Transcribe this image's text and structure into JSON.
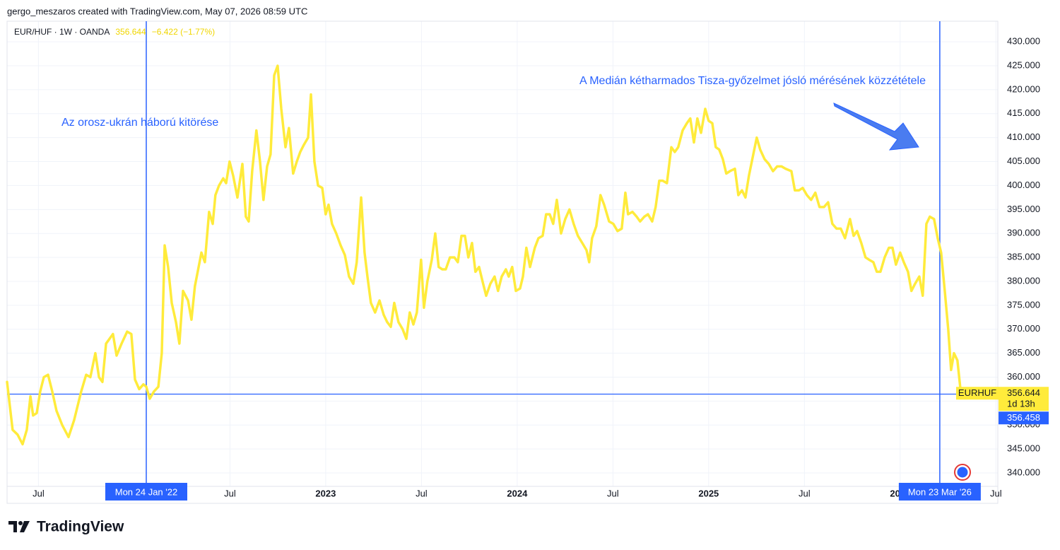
{
  "header": "gergo_meszaros created with TradingView.com, May 07, 2026 08:59 UTC",
  "brand": "TradingView",
  "chart_data": {
    "type": "line",
    "legend_price": "356.644",
    "legend_change": "−6.422 (−1.77%)",
    "annotations": [
      "Az orosz-ukrán háború kitörése",
      "A Medián kétharmados Tisza-győzelmet jósló mérésének közzététele"
    ],
    "x": [
      2021.336,
      2021.365,
      2021.391,
      2021.417,
      2021.439,
      2021.458,
      2021.472,
      2021.491,
      2021.509,
      2021.528,
      2021.55,
      2021.572,
      2021.594,
      2021.624,
      2021.657,
      2021.686,
      2021.723,
      2021.749,
      2021.771,
      2021.797,
      2021.816,
      2021.834,
      2021.853,
      2021.889,
      2021.908,
      2021.934,
      2021.963,
      2021.985,
      2022.004,
      2022.026,
      2022.048,
      2022.063,
      2022.081,
      2022.103,
      2022.126,
      2022.144,
      2022.159,
      2022.177,
      2022.196,
      2022.218,
      2022.236,
      2022.255,
      2022.281,
      2022.299,
      2022.317,
      2022.351,
      2022.369,
      2022.391,
      2022.41,
      2022.424,
      2022.443,
      2022.465,
      2022.48,
      2022.498,
      2022.517,
      2022.539,
      2022.565,
      2022.583,
      2022.598,
      2022.616,
      2022.638,
      2022.657,
      2022.675,
      2022.694,
      2022.712,
      2022.731,
      2022.749,
      2022.768,
      2022.79,
      2022.808,
      2022.83,
      2022.849,
      2022.867,
      2022.886,
      2022.908,
      2022.923,
      2022.941,
      2022.96,
      2022.982,
      2023.0,
      2023.015,
      2023.033,
      2023.055,
      2023.078,
      2023.1,
      2023.122,
      2023.144,
      2023.162,
      2023.185,
      2023.203,
      2023.218,
      2023.236,
      2023.258,
      2023.281,
      2023.303,
      2023.321,
      2023.34,
      2023.358,
      2023.38,
      2023.402,
      2023.421,
      2023.439,
      2023.458,
      2023.476,
      2023.498,
      2023.513,
      2023.531,
      2023.554,
      2023.572,
      2023.59,
      2023.609,
      2023.627,
      2023.649,
      2023.672,
      2023.69,
      2023.709,
      2023.727,
      2023.745,
      2023.764,
      2023.782,
      2023.801,
      2023.819,
      2023.838,
      2023.86,
      2023.882,
      2023.9,
      2023.919,
      2023.941,
      2023.956,
      2023.974,
      2023.993,
      2024.015,
      2024.03,
      2024.048,
      2024.067,
      2024.092,
      2024.111,
      2024.133,
      2024.151,
      2024.17,
      2024.188,
      2024.207,
      2024.229,
      2024.251,
      2024.273,
      2024.295,
      2024.317,
      2024.34,
      2024.362,
      2024.376,
      2024.391,
      2024.413,
      2024.435,
      2024.454,
      2024.48,
      2024.502,
      2024.524,
      2024.546,
      2024.565,
      2024.579,
      2024.602,
      2024.624,
      2024.642,
      2024.664,
      2024.683,
      2024.705,
      2024.723,
      2024.742,
      2024.76,
      2024.782,
      2024.805,
      2024.823,
      2024.841,
      2024.864,
      2024.886,
      2024.904,
      2024.923,
      2024.941,
      2024.96,
      2024.982,
      2025.0,
      2025.019,
      2025.037,
      2025.055,
      2025.074,
      2025.092,
      2025.111,
      2025.137,
      2025.155,
      2025.174,
      2025.192,
      2025.21,
      2025.233,
      2025.251,
      2025.269,
      2025.292,
      2025.314,
      2025.336,
      2025.358,
      2025.38,
      2025.402,
      2025.432,
      2025.45,
      2025.472,
      2025.491,
      2025.513,
      2025.535,
      2025.557,
      2025.579,
      2025.602,
      2025.624,
      2025.646,
      2025.668,
      2025.69,
      2025.712,
      2025.738,
      2025.757,
      2025.775,
      2025.797,
      2025.819,
      2025.838,
      2025.86,
      2025.878,
      2025.897,
      2025.919,
      2025.941,
      2025.96,
      2025.978,
      2026.0,
      2026.019,
      2026.041,
      2026.059,
      2026.078,
      2026.1,
      2026.118,
      2026.137,
      2026.155,
      2026.177,
      2026.196,
      2026.214,
      2026.233,
      2026.251,
      2026.266,
      2026.281,
      2026.299,
      2026.317
    ],
    "series": [
      {
        "name": "EUR/HUF · 1W · OANDA",
        "color": "#ffeb3b",
        "values": [
          359,
          349,
          348,
          346,
          349,
          356,
          352,
          352.5,
          357,
          360,
          360.5,
          357,
          353,
          350,
          347.5,
          351,
          357,
          360.5,
          360,
          365,
          360,
          359,
          367,
          369,
          364.5,
          367,
          369.5,
          369,
          359.5,
          357.5,
          358.5,
          358,
          355.5,
          357,
          358,
          365,
          387.5,
          383,
          375.5,
          371.5,
          367,
          378,
          376,
          372,
          379,
          386,
          384,
          394.5,
          392,
          398,
          400,
          401.5,
          400.5,
          405,
          402,
          397.5,
          404.5,
          393.5,
          392.5,
          403,
          411.5,
          405,
          397,
          404,
          406.5,
          423,
          425,
          416,
          408,
          412,
          402.5,
          405,
          407,
          408.5,
          410,
          419,
          405,
          400,
          399.5,
          394,
          396,
          392,
          390,
          387.5,
          385.5,
          381,
          379.5,
          384,
          397.5,
          386,
          381,
          375.5,
          373.5,
          376,
          373,
          371.5,
          370.5,
          375.5,
          371.5,
          370,
          368,
          373.5,
          371,
          373.5,
          384.5,
          374.5,
          380,
          384.5,
          390,
          383,
          382.5,
          382.5,
          385,
          385,
          384,
          389.5,
          389.5,
          385,
          388,
          382,
          383,
          380,
          377,
          379.5,
          381,
          378,
          381,
          382.5,
          381,
          383,
          378,
          378.5,
          381,
          387,
          383,
          387,
          389,
          389.5,
          394,
          394,
          392,
          397,
          390,
          393,
          395,
          392,
          389.5,
          388,
          386.5,
          384,
          389,
          391.5,
          398,
          396,
          392.5,
          392,
          390.5,
          391,
          398.5,
          394,
          394.5,
          393.5,
          392.5,
          393.5,
          394,
          392.5,
          395.5,
          401,
          401,
          400.5,
          408,
          407,
          408,
          411.5,
          413,
          414,
          409,
          414,
          411,
          416,
          413.5,
          413,
          408,
          407.5,
          405.5,
          402.5,
          403,
          403.5,
          398,
          399,
          397.5,
          402,
          406.5,
          410,
          407.5,
          405.5,
          404.5,
          403,
          404,
          404,
          403.5,
          403,
          399,
          399,
          399.5,
          398,
          397,
          398.5,
          395.5,
          395.5,
          396.5,
          392,
          391,
          391,
          389,
          393,
          389.5,
          390.5,
          388,
          385,
          384.5,
          384,
          382,
          382,
          385,
          387,
          387,
          383.5,
          386,
          384,
          382,
          378,
          379.5,
          381,
          377,
          392,
          393.5,
          393,
          389,
          386,
          378,
          370,
          361.5,
          365,
          363.5,
          356.644
        ]
      }
    ],
    "xlim": [
      2021.336,
      2026.51
    ],
    "xticks": [
      {
        "value": 2021.5,
        "label": "Jul"
      },
      {
        "value": 2022.5,
        "label": "Jul"
      },
      2023,
      {
        "value": 2023.5,
        "label": "Jul"
      },
      2024,
      {
        "value": 2024.5,
        "label": "Jul"
      },
      2025,
      {
        "value": 2025.5,
        "label": "Jul"
      },
      2026,
      {
        "value": 2026.5,
        "label": "Jul"
      }
    ],
    "ylim": [
      337.2,
      434.3
    ],
    "yticks": [
      {
        "value": 340,
        "label": "340.000"
      },
      {
        "value": 345,
        "label": "345.000"
      },
      {
        "value": 350,
        "label": "350.000"
      },
      {
        "value": 355,
        "label": "355.000"
      },
      {
        "value": 360,
        "label": "360.000"
      },
      {
        "value": 365,
        "label": "365.000"
      },
      {
        "value": 370,
        "label": "370.000"
      },
      {
        "value": 375,
        "label": "375.000"
      },
      {
        "value": 380,
        "label": "380.000"
      },
      {
        "value": 385,
        "label": "385.000"
      },
      {
        "value": 390,
        "label": "390.000"
      },
      {
        "value": 395,
        "label": "395.000"
      },
      {
        "value": 400,
        "label": "400.000"
      },
      {
        "value": 405,
        "label": "405.000"
      },
      {
        "value": 410,
        "label": "410.000"
      },
      {
        "value": 415,
        "label": "415.000"
      },
      {
        "value": 420,
        "label": "420.000"
      },
      {
        "value": 425,
        "label": "425.000"
      },
      {
        "value": 430,
        "label": "430.000"
      }
    ],
    "grid": true,
    "vlines": [
      {
        "x": 2022.063,
        "label": "Mon 24 Jan '22"
      },
      {
        "x": 2026.207,
        "label": "Mon 23 Mar '26"
      }
    ],
    "hline": {
      "value": 356.458,
      "color": "#2962ff"
    },
    "last": {
      "value": 356.644,
      "symbol": "EURHUF",
      "countdown": "1d 13h"
    }
  }
}
